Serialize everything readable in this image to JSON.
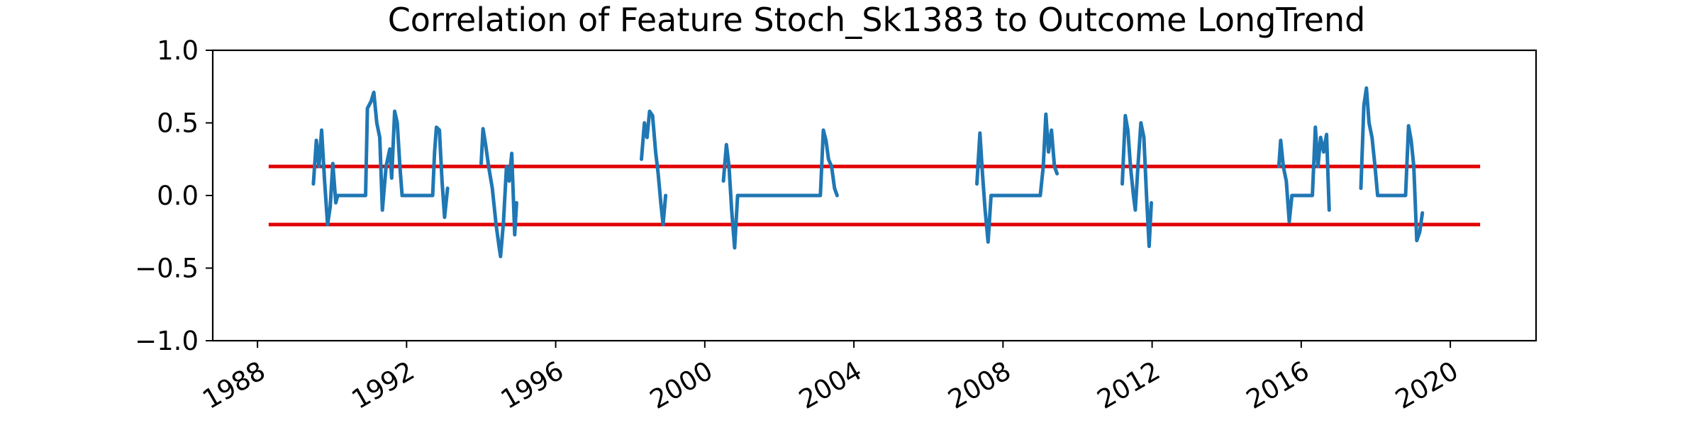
{
  "chart_data": {
    "type": "line",
    "title": "Correlation of Feature Stoch_Sk1383 to Outcome LongTrend",
    "xlabel": "",
    "ylabel": "",
    "xlim": [
      1986.8,
      2022.3
    ],
    "ylim": [
      -1.0,
      1.0
    ],
    "x_ticks": [
      1988,
      1992,
      1996,
      2000,
      2004,
      2008,
      2012,
      2016,
      2020
    ],
    "x_tick_labels": [
      "1988",
      "1992",
      "1996",
      "2000",
      "2004",
      "2008",
      "2012",
      "2016",
      "2020"
    ],
    "y_ticks": [
      1.0,
      0.5,
      0.0,
      -0.5,
      -1.0
    ],
    "y_tick_labels": [
      "1.0",
      "0.5",
      "0.0",
      "−0.5",
      "−1.0"
    ],
    "grid": false,
    "colors": {
      "series": "#1f77b4",
      "threshold": "#e00000"
    },
    "thresholds": [
      {
        "value": 0.2,
        "x": [
          1988.3,
          2020.8
        ]
      },
      {
        "value": -0.2,
        "x": [
          1988.3,
          2020.8
        ]
      }
    ],
    "series": [
      {
        "segments": [
          [
            [
              1989.5,
              0.08
            ],
            [
              1989.58,
              0.38
            ],
            [
              1989.65,
              0.2
            ],
            [
              1989.72,
              0.45
            ],
            [
              1989.8,
              0.1
            ],
            [
              1989.88,
              -0.2
            ],
            [
              1989.95,
              -0.08
            ],
            [
              1990.02,
              0.22
            ],
            [
              1990.1,
              -0.05
            ],
            [
              1990.15,
              0.0
            ],
            [
              1990.9,
              0.0
            ],
            [
              1990.95,
              0.6
            ],
            [
              1991.05,
              0.65
            ],
            [
              1991.12,
              0.71
            ],
            [
              1991.2,
              0.5
            ],
            [
              1991.28,
              0.4
            ],
            [
              1991.35,
              -0.1
            ],
            [
              1991.45,
              0.2
            ],
            [
              1991.55,
              0.32
            ],
            [
              1991.6,
              0.12
            ],
            [
              1991.68,
              0.58
            ],
            [
              1991.75,
              0.5
            ],
            [
              1991.82,
              0.2
            ],
            [
              1991.88,
              0.0
            ],
            [
              1992.7,
              0.0
            ],
            [
              1992.75,
              0.3
            ],
            [
              1992.8,
              0.47
            ],
            [
              1992.88,
              0.45
            ],
            [
              1992.95,
              0.1
            ],
            [
              1993.02,
              -0.15
            ],
            [
              1993.1,
              0.05
            ]
          ],
          [
            [
              1994.0,
              0.22
            ],
            [
              1994.05,
              0.46
            ],
            [
              1994.12,
              0.35
            ],
            [
              1994.2,
              0.2
            ],
            [
              1994.3,
              0.05
            ],
            [
              1994.4,
              -0.2
            ],
            [
              1994.48,
              -0.35
            ],
            [
              1994.52,
              -0.42
            ],
            [
              1994.6,
              -0.18
            ],
            [
              1994.68,
              0.2
            ],
            [
              1994.75,
              0.1
            ],
            [
              1994.82,
              0.29
            ],
            [
              1994.9,
              -0.27
            ],
            [
              1994.95,
              -0.05
            ]
          ],
          [
            [
              1998.3,
              0.25
            ],
            [
              1998.38,
              0.5
            ],
            [
              1998.45,
              0.4
            ],
            [
              1998.52,
              0.58
            ],
            [
              1998.6,
              0.55
            ],
            [
              1998.68,
              0.3
            ],
            [
              1998.75,
              0.15
            ],
            [
              1998.82,
              -0.05
            ],
            [
              1998.88,
              -0.2
            ],
            [
              1998.95,
              0.0
            ]
          ],
          [
            [
              2000.5,
              0.1
            ],
            [
              2000.58,
              0.35
            ],
            [
              2000.65,
              0.2
            ],
            [
              2000.72,
              -0.1
            ],
            [
              2000.8,
              -0.36
            ],
            [
              2000.88,
              0.0
            ],
            [
              2003.1,
              0.0
            ],
            [
              2003.18,
              0.45
            ],
            [
              2003.25,
              0.38
            ],
            [
              2003.32,
              0.25
            ],
            [
              2003.4,
              0.2
            ],
            [
              2003.48,
              0.05
            ],
            [
              2003.55,
              0.0
            ]
          ],
          [
            [
              2007.3,
              0.08
            ],
            [
              2007.38,
              0.43
            ],
            [
              2007.45,
              0.15
            ],
            [
              2007.52,
              -0.1
            ],
            [
              2007.6,
              -0.32
            ],
            [
              2007.68,
              0.0
            ],
            [
              2009.0,
              0.0
            ],
            [
              2009.08,
              0.2
            ],
            [
              2009.15,
              0.56
            ],
            [
              2009.22,
              0.3
            ],
            [
              2009.3,
              0.45
            ],
            [
              2009.38,
              0.2
            ],
            [
              2009.45,
              0.15
            ]
          ],
          [
            [
              2011.2,
              0.08
            ],
            [
              2011.28,
              0.55
            ],
            [
              2011.35,
              0.45
            ],
            [
              2011.42,
              0.2
            ],
            [
              2011.5,
              0.0
            ],
            [
              2011.55,
              -0.1
            ],
            [
              2011.62,
              0.2
            ],
            [
              2011.7,
              0.5
            ],
            [
              2011.78,
              0.4
            ],
            [
              2011.85,
              0.0
            ],
            [
              2011.92,
              -0.35
            ],
            [
              2011.98,
              -0.05
            ]
          ],
          [
            [
              2015.4,
              0.2
            ],
            [
              2015.45,
              0.38
            ],
            [
              2015.52,
              0.2
            ],
            [
              2015.6,
              0.1
            ],
            [
              2015.68,
              -0.18
            ],
            [
              2015.75,
              0.0
            ],
            [
              2016.3,
              0.0
            ],
            [
              2016.38,
              0.47
            ],
            [
              2016.45,
              0.2
            ],
            [
              2016.52,
              0.4
            ],
            [
              2016.6,
              0.3
            ],
            [
              2016.68,
              0.42
            ],
            [
              2016.75,
              -0.1
            ]
          ],
          [
            [
              2017.6,
              0.05
            ],
            [
              2017.68,
              0.62
            ],
            [
              2017.75,
              0.74
            ],
            [
              2017.82,
              0.5
            ],
            [
              2017.9,
              0.4
            ],
            [
              2017.98,
              0.2
            ],
            [
              2018.05,
              0.0
            ],
            [
              2018.8,
              0.0
            ],
            [
              2018.88,
              0.48
            ],
            [
              2018.95,
              0.38
            ],
            [
              2019.02,
              0.2
            ],
            [
              2019.1,
              -0.31
            ],
            [
              2019.18,
              -0.25
            ],
            [
              2019.25,
              -0.12
            ]
          ]
        ]
      }
    ]
  }
}
